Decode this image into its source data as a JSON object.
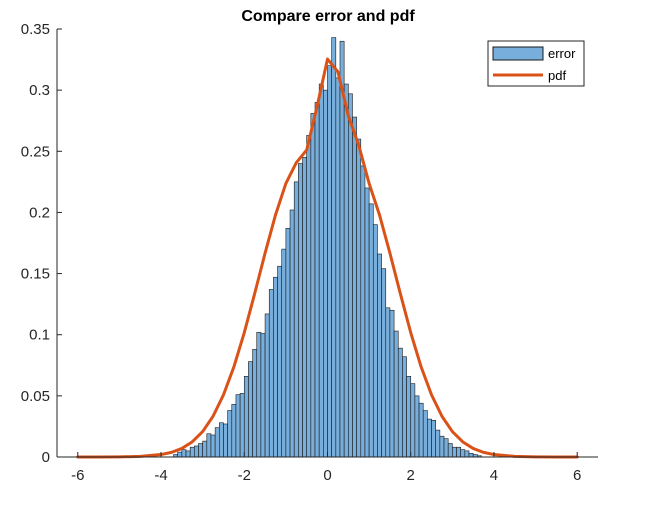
{
  "chart_data": {
    "type": "bar",
    "title": "Compare error and pdf",
    "xlabel": "",
    "ylabel": "",
    "xlim": [
      -6.5,
      6.5
    ],
    "ylim": [
      0,
      0.35
    ],
    "xticks": [
      -6,
      -4,
      -2,
      0,
      2,
      4,
      6
    ],
    "xtick_labels": [
      "-6",
      "-4",
      "-2",
      "0",
      "2",
      "4",
      "6"
    ],
    "yticks": [
      0,
      0.05,
      0.1,
      0.15,
      0.2,
      0.25,
      0.3,
      0.35
    ],
    "ytick_labels": [
      "0",
      "0.05",
      "0.1",
      "0.15",
      "0.2",
      "0.25",
      "0.3",
      "0.35"
    ],
    "grid": false,
    "legend_position": "top-right",
    "colors": {
      "histogram_fill": "#77AEDB",
      "histogram_edge": "#1a1a1a",
      "pdf_line": "#D95319",
      "axes": "#262626"
    },
    "series": [
      {
        "name": "error",
        "kind": "histogram",
        "bin_edges": [
          -3.7,
          -3.6,
          -3.5,
          -3.4,
          -3.3,
          -3.2,
          -3.1,
          -3.0,
          -2.9,
          -2.8,
          -2.7,
          -2.6,
          -2.5,
          -2.4,
          -2.3,
          -2.2,
          -2.1,
          -2.0,
          -1.9,
          -1.8,
          -1.7,
          -1.6,
          -1.5,
          -1.4,
          -1.3,
          -1.2,
          -1.1,
          -1.0,
          -0.9,
          -0.8,
          -0.7,
          -0.6,
          -0.5,
          -0.4,
          -0.3,
          -0.2,
          -0.1,
          0.0,
          0.1,
          0.2,
          0.3,
          0.4,
          0.5,
          0.6,
          0.7,
          0.8,
          0.9,
          1.0,
          1.1,
          1.2,
          1.3,
          1.4,
          1.5,
          1.6,
          1.7,
          1.8,
          1.9,
          2.0,
          2.1,
          2.2,
          2.3,
          2.4,
          2.5,
          2.6,
          2.7,
          2.8,
          2.9,
          3.0,
          3.1,
          3.2,
          3.3,
          3.4,
          3.5,
          3.6,
          3.7
        ],
        "values": [
          0.002,
          0.004,
          0.006,
          0.005,
          0.008,
          0.009,
          0.011,
          0.013,
          0.019,
          0.018,
          0.024,
          0.028,
          0.027,
          0.038,
          0.043,
          0.051,
          0.052,
          0.066,
          0.078,
          0.088,
          0.102,
          0.101,
          0.117,
          0.137,
          0.147,
          0.156,
          0.17,
          0.187,
          0.202,
          0.225,
          0.24,
          0.245,
          0.263,
          0.281,
          0.29,
          0.305,
          0.3,
          0.32,
          0.343,
          0.31,
          0.34,
          0.305,
          0.297,
          0.278,
          0.26,
          0.238,
          0.22,
          0.207,
          0.19,
          0.166,
          0.154,
          0.122,
          0.12,
          0.103,
          0.089,
          0.082,
          0.066,
          0.06,
          0.05,
          0.044,
          0.038,
          0.031,
          0.03,
          0.022,
          0.017,
          0.015,
          0.011,
          0.008,
          0.008,
          0.006,
          0.005,
          0.003,
          0.002,
          0.001
        ]
      },
      {
        "name": "pdf",
        "kind": "line",
        "x": [
          -6.0,
          -5.5,
          -5.0,
          -4.5,
          -4.0,
          -3.75,
          -3.5,
          -3.25,
          -3.0,
          -2.75,
          -2.5,
          -2.25,
          -2.0,
          -1.75,
          -1.5,
          -1.25,
          -1.0,
          -0.75,
          -0.5,
          -0.25,
          0.0,
          0.25,
          0.5,
          0.75,
          1.0,
          1.25,
          1.5,
          1.75,
          2.0,
          2.25,
          2.5,
          2.75,
          3.0,
          3.25,
          3.5,
          3.75,
          4.0,
          4.5,
          5.0,
          5.5,
          6.0
        ],
        "y": [
          0.0,
          0.0,
          0.0001,
          0.0005,
          0.002,
          0.0038,
          0.007,
          0.0124,
          0.0208,
          0.0333,
          0.0508,
          0.0737,
          0.1017,
          0.1336,
          0.1667,
          0.1979,
          0.2237,
          0.2407,
          0.2511,
          0.2867,
          0.3254,
          0.315,
          0.279,
          0.255,
          0.2237,
          0.1979,
          0.1667,
          0.1336,
          0.1017,
          0.0737,
          0.0508,
          0.0333,
          0.0208,
          0.0124,
          0.007,
          0.0038,
          0.002,
          0.0005,
          0.0001,
          0.0,
          0.0
        ]
      }
    ],
    "legend": {
      "entries": [
        "error",
        "pdf"
      ]
    }
  }
}
